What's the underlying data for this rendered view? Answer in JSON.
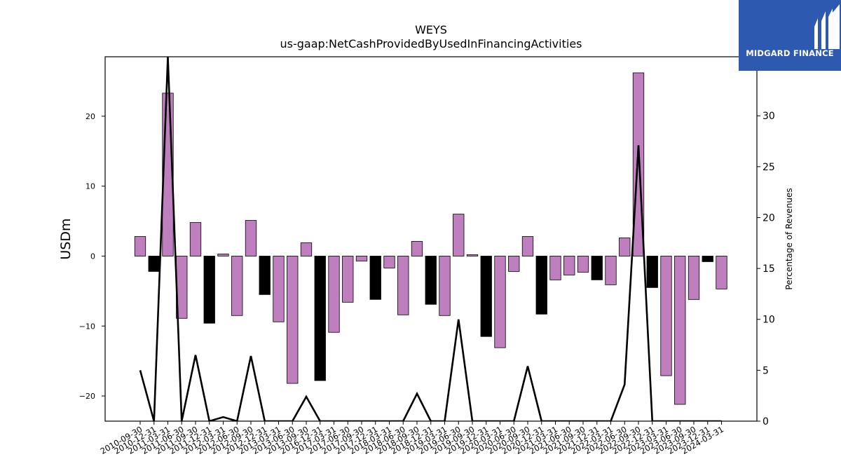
{
  "logo": {
    "text": "MIDGARD FINANCE",
    "background": "#2d5ab0"
  },
  "chart_data": {
    "type": "bar",
    "title": "WEYS",
    "subtitle": "us-gaap:NetCashProvidedByUsedInFinancingActivities",
    "ylabel": "USDm",
    "y2label": "Percentage of Revenues",
    "ylim": [
      -23.6,
      28.5
    ],
    "y2lim": [
      0,
      35.8
    ],
    "yticks": [
      -20,
      -10,
      0,
      10,
      20
    ],
    "y2ticks": [
      0,
      5,
      10,
      15,
      20,
      25,
      30,
      35
    ],
    "ytick_labels": [
      "−20",
      "−10",
      "0",
      "10",
      "20"
    ],
    "y2tick_labels": [
      "0",
      "5",
      "10",
      "15",
      "20",
      "25",
      "30",
      "35"
    ],
    "colors": {
      "fiscal_year_end": "#000000",
      "quarter": "#bf7fbf",
      "line": "#000000"
    },
    "categories": [
      "2010-09-30",
      "2010-12-31",
      "2011-03-31",
      "2011-06-30",
      "2011-09-30",
      "2011-12-31",
      "2012-03-31",
      "2012-06-30",
      "2012-09-30",
      "2012-12-31",
      "2013-03-31",
      "2013-06-30",
      "2013-09-30",
      "2016-12-31",
      "2017-03-31",
      "2017-06-30",
      "2017-09-30",
      "2017-12-31",
      "2018-03-31",
      "2018-06-30",
      "2018-09-30",
      "2018-12-31",
      "2019-03-31",
      "2019-06-30",
      "2019-09-30",
      "2019-12-31",
      "2020-03-31",
      "2020-06-30",
      "2020-09-30",
      "2020-12-31",
      "2021-03-31",
      "2021-06-30",
      "2021-09-30",
      "2021-12-31",
      "2022-03-31",
      "2022-06-30",
      "2022-09-30",
      "2022-12-31",
      "2023-03-31",
      "2023-06-30",
      "2023-09-30",
      "2023-12-31",
      "2024-03-31"
    ],
    "series": [
      {
        "values": [
          2.8,
          -2.2,
          23.3,
          -8.9,
          4.8,
          -9.6,
          0.3,
          -8.5,
          5.1,
          -5.5,
          -9.4,
          -18.2,
          1.9,
          -17.8,
          -10.9,
          -6.6,
          -0.7,
          -6.2,
          -1.7,
          -8.4,
          2.1,
          -6.9,
          -8.5,
          6.0,
          0.2,
          -11.5,
          -13.1,
          -2.2,
          2.8,
          -8.3,
          -3.4,
          -2.7,
          -2.3,
          -3.4,
          -4.1,
          2.6,
          26.2,
          -4.5,
          -17.1,
          -21.2,
          -6.2,
          -0.8,
          -4.7
        ]
      },
      {
        "kind": "line",
        "axis": "right",
        "values": [
          5.0,
          0,
          35.8,
          0,
          6.5,
          0,
          0.4,
          0,
          6.4,
          0,
          0,
          0,
          2.4,
          0,
          0,
          0,
          0,
          0,
          0,
          0,
          2.7,
          0,
          0,
          10.0,
          0,
          0,
          0,
          0,
          5.4,
          0,
          0,
          0,
          0,
          0,
          0,
          3.6,
          27.1,
          0,
          0,
          0,
          0,
          0,
          0
        ]
      }
    ],
    "bar_kind": [
      "quarter",
      "fiscal_year_end",
      "quarter",
      "quarter",
      "quarter",
      "fiscal_year_end",
      "quarter",
      "quarter",
      "quarter",
      "fiscal_year_end",
      "quarter",
      "quarter",
      "quarter",
      "fiscal_year_end",
      "quarter",
      "quarter",
      "quarter",
      "fiscal_year_end",
      "quarter",
      "quarter",
      "quarter",
      "fiscal_year_end",
      "quarter",
      "quarter",
      "quarter",
      "fiscal_year_end",
      "quarter",
      "quarter",
      "quarter",
      "fiscal_year_end",
      "quarter",
      "quarter",
      "quarter",
      "fiscal_year_end",
      "quarter",
      "quarter",
      "quarter",
      "fiscal_year_end",
      "quarter",
      "quarter",
      "quarter",
      "fiscal_year_end",
      "quarter"
    ]
  }
}
